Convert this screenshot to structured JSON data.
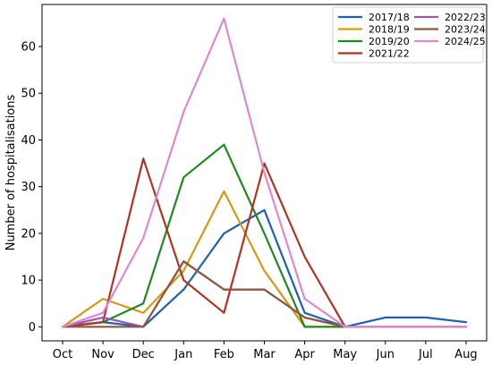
{
  "chart_data": {
    "type": "line",
    "title": "",
    "xlabel": "",
    "ylabel": "Number of hospitalisations",
    "categories": [
      "Oct",
      "Nov",
      "Dec",
      "Jan",
      "Feb",
      "Mar",
      "Apr",
      "May",
      "Jun",
      "Jul",
      "Aug"
    ],
    "ylim": [
      -3,
      69
    ],
    "yticks": [
      0,
      10,
      20,
      30,
      40,
      50,
      60
    ],
    "grid": false,
    "legend_position": "top-right",
    "series": [
      {
        "name": "2017/18",
        "color": "#1f5fb4",
        "values": [
          0,
          1,
          0,
          8,
          20,
          25,
          3,
          0,
          2,
          2,
          1
        ]
      },
      {
        "name": "2018/19",
        "color": "#d39a12",
        "values": [
          0,
          6,
          3,
          12,
          29,
          12,
          0,
          0,
          0,
          0,
          0
        ]
      },
      {
        "name": "2019/20",
        "color": "#1e8a1e",
        "values": [
          0,
          1,
          5,
          32,
          39,
          20,
          0,
          0,
          null,
          null,
          null
        ]
      },
      {
        "name": "2021/22",
        "color": "#b03424",
        "values": [
          0,
          1,
          36,
          10,
          3,
          35,
          15,
          0,
          null,
          null,
          null
        ]
      },
      {
        "name": "2022/23",
        "color": "#9b55b0",
        "values": [
          0,
          2,
          0,
          14,
          8,
          8,
          2,
          0,
          0,
          0,
          0
        ]
      },
      {
        "name": "2023/24",
        "color": "#8b5a3c",
        "values": [
          0,
          0,
          0,
          14,
          8,
          8,
          2,
          0,
          0,
          0,
          0
        ]
      },
      {
        "name": "2024/25",
        "color": "#dd88cf",
        "values": [
          0,
          3,
          19,
          46,
          66,
          33,
          6,
          0,
          0,
          0,
          0
        ]
      }
    ]
  }
}
